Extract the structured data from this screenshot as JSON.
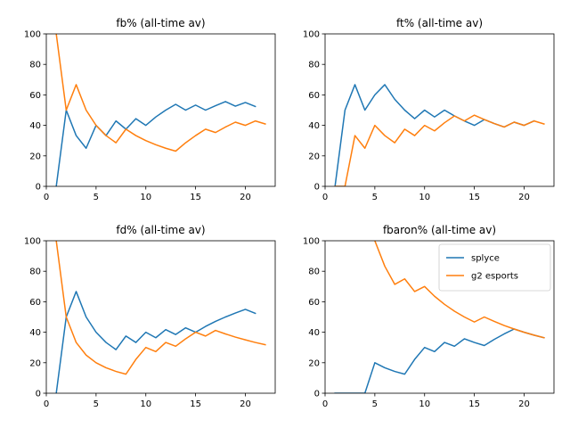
{
  "chart_data": [
    {
      "type": "line",
      "title": "fb% (all-time av)",
      "xlim": [
        0,
        23
      ],
      "ylim": [
        0,
        100
      ],
      "xticks": [
        0,
        5,
        10,
        15,
        20
      ],
      "yticks": [
        0,
        20,
        40,
        60,
        80,
        100
      ],
      "series": [
        {
          "name": "splyce",
          "color": "#1f77b4",
          "x": [
            1,
            2,
            3,
            4,
            5,
            6,
            7,
            8,
            9,
            10,
            11,
            12,
            13,
            14,
            15,
            16,
            17,
            18,
            19,
            20,
            21
          ],
          "y": [
            0,
            50,
            33.3,
            25,
            40,
            33.3,
            42.9,
            37.5,
            44.4,
            40,
            45.5,
            50,
            53.8,
            50,
            53.3,
            50,
            52.9,
            55.6,
            52.6,
            55,
            52.4
          ]
        },
        {
          "name": "g2 esports",
          "color": "#ff7f0e",
          "x": [
            1,
            2,
            3,
            4,
            5,
            6,
            7,
            8,
            9,
            10,
            11,
            12,
            13,
            14,
            15,
            16,
            17,
            18,
            19,
            20,
            21,
            22
          ],
          "y": [
            100,
            50,
            66.7,
            50,
            40,
            33.3,
            28.6,
            37.5,
            33.3,
            30,
            27.3,
            25,
            23.1,
            28.6,
            33.3,
            37.5,
            35.3,
            38.9,
            42.1,
            40,
            42.9,
            40.9
          ]
        }
      ]
    },
    {
      "type": "line",
      "title": "ft% (all-time av)",
      "xlim": [
        0,
        23
      ],
      "ylim": [
        0,
        100
      ],
      "xticks": [
        0,
        5,
        10,
        15,
        20
      ],
      "yticks": [
        0,
        20,
        40,
        60,
        80,
        100
      ],
      "series": [
        {
          "name": "splyce",
          "color": "#1f77b4",
          "x": [
            1,
            2,
            3,
            4,
            5,
            6,
            7,
            8,
            9,
            10,
            11,
            12,
            13,
            14,
            15,
            16,
            17,
            18,
            19,
            20,
            21
          ],
          "y": [
            0,
            50,
            66.7,
            50,
            60,
            66.7,
            57.1,
            50,
            44.4,
            50,
            45.5,
            50,
            46.2,
            42.9,
            40,
            43.8,
            41.2,
            38.9,
            42.1,
            40,
            42.9
          ]
        },
        {
          "name": "g2 esports",
          "color": "#ff7f0e",
          "x": [
            1,
            2,
            3,
            4,
            5,
            6,
            7,
            8,
            9,
            10,
            11,
            12,
            13,
            14,
            15,
            16,
            17,
            18,
            19,
            20,
            21,
            22
          ],
          "y": [
            0,
            0,
            33.3,
            25,
            40,
            33.3,
            28.6,
            37.5,
            33.3,
            40,
            36.4,
            41.7,
            46.2,
            42.9,
            46.7,
            43.8,
            41.2,
            38.9,
            42.1,
            40,
            42.9,
            40.9
          ]
        }
      ]
    },
    {
      "type": "line",
      "title": "fd% (all-time av)",
      "xlim": [
        0,
        23
      ],
      "ylim": [
        0,
        100
      ],
      "xticks": [
        0,
        5,
        10,
        15,
        20
      ],
      "yticks": [
        0,
        20,
        40,
        60,
        80,
        100
      ],
      "series": [
        {
          "name": "splyce",
          "color": "#1f77b4",
          "x": [
            1,
            2,
            3,
            4,
            5,
            6,
            7,
            8,
            9,
            10,
            11,
            12,
            13,
            14,
            15,
            16,
            17,
            18,
            19,
            20,
            21
          ],
          "y": [
            0,
            50,
            66.7,
            50,
            40,
            33.3,
            28.6,
            37.5,
            33.3,
            40,
            36.4,
            41.7,
            38.5,
            42.9,
            40,
            43.8,
            47.1,
            50,
            52.6,
            55,
            52.4
          ]
        },
        {
          "name": "g2 esports",
          "color": "#ff7f0e",
          "x": [
            1,
            2,
            3,
            4,
            5,
            6,
            7,
            8,
            9,
            10,
            11,
            12,
            13,
            14,
            15,
            16,
            17,
            18,
            19,
            20,
            21,
            22
          ],
          "y": [
            100,
            50,
            33.3,
            25,
            20,
            16.7,
            14.3,
            12.5,
            22.2,
            30,
            27.3,
            33.3,
            30.8,
            35.7,
            40,
            37.5,
            41.2,
            38.9,
            36.8,
            35,
            33.3,
            31.8
          ]
        }
      ]
    },
    {
      "type": "line",
      "title": "fbaron% (all-time av)",
      "xlim": [
        0,
        23
      ],
      "ylim": [
        0,
        100
      ],
      "xticks": [
        0,
        5,
        10,
        15,
        20
      ],
      "yticks": [
        0,
        20,
        40,
        60,
        80,
        100
      ],
      "legend": "top-right",
      "series": [
        {
          "name": "splyce",
          "color": "#1f77b4",
          "x": [
            1,
            2,
            3,
            4,
            5,
            6,
            7,
            8,
            9,
            10,
            11,
            12,
            13,
            14,
            15,
            16,
            17,
            18,
            19,
            20,
            21,
            22
          ],
          "y": [
            0,
            0,
            0,
            0,
            20,
            16.7,
            14.3,
            12.5,
            22.2,
            30,
            27.3,
            33.3,
            30.8,
            35.7,
            33.3,
            31.3,
            35.3,
            38.9,
            42.1,
            40,
            38.1,
            36.4
          ]
        },
        {
          "name": "g2 esports",
          "color": "#ff7f0e",
          "x": [
            5,
            6,
            7,
            8,
            9,
            10,
            11,
            12,
            13,
            14,
            15,
            16,
            17,
            18,
            19,
            20,
            21,
            22
          ],
          "y": [
            100,
            83.3,
            71.4,
            75,
            66.7,
            70,
            63.6,
            58.3,
            53.8,
            50,
            46.7,
            50,
            47.1,
            44.4,
            42.1,
            40,
            38.1,
            36.4
          ]
        }
      ]
    }
  ]
}
